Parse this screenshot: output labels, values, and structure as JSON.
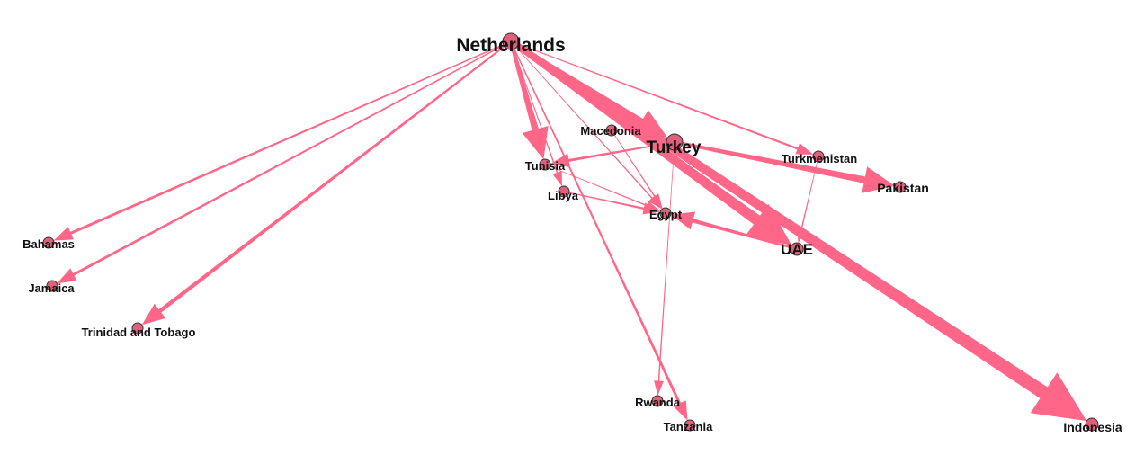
{
  "colors": {
    "edge": "#ff6687",
    "node_fill": "#e0607a",
    "node_stroke": "#333333",
    "label": "#111111"
  },
  "nodes": [
    {
      "id": "netherlands",
      "label": "Netherlands"
    },
    {
      "id": "turkey",
      "label": "Turkey"
    },
    {
      "id": "uae",
      "label": "UAE"
    },
    {
      "id": "macedonia",
      "label": "Macedonia"
    },
    {
      "id": "tunisia",
      "label": "Tunisia"
    },
    {
      "id": "libya",
      "label": "Libya"
    },
    {
      "id": "egypt",
      "label": "Egypt"
    },
    {
      "id": "turkmenistan",
      "label": "Turkmenistan"
    },
    {
      "id": "pakistan",
      "label": "Pakistan"
    },
    {
      "id": "bahamas",
      "label": "Bahamas"
    },
    {
      "id": "jamaica",
      "label": "Jamaica"
    },
    {
      "id": "trinidad",
      "label": "Trinidad and Tobago"
    },
    {
      "id": "rwanda",
      "label": "Rwanda"
    },
    {
      "id": "tanzania",
      "label": "Tanzania"
    },
    {
      "id": "indonesia",
      "label": "Indonesia"
    }
  ],
  "edges": [
    {
      "from": "netherlands",
      "to": "indonesia",
      "weight": 10
    },
    {
      "from": "netherlands",
      "to": "uae",
      "weight": 8
    },
    {
      "from": "netherlands",
      "to": "turkey",
      "weight": 5
    },
    {
      "from": "netherlands",
      "to": "tunisia",
      "weight": 5
    },
    {
      "from": "netherlands",
      "to": "trinidad",
      "weight": 3
    },
    {
      "from": "netherlands",
      "to": "jamaica",
      "weight": 2
    },
    {
      "from": "netherlands",
      "to": "bahamas",
      "weight": 2
    },
    {
      "from": "netherlands",
      "to": "tanzania",
      "weight": 2
    },
    {
      "from": "netherlands",
      "to": "turkmenistan",
      "weight": 1.5
    },
    {
      "from": "netherlands",
      "to": "egypt",
      "weight": 1
    },
    {
      "from": "netherlands",
      "to": "libya",
      "weight": 1
    },
    {
      "from": "turkey",
      "to": "pakistan",
      "weight": 5
    },
    {
      "from": "turkey",
      "to": "tunisia",
      "weight": 2
    },
    {
      "from": "turkey",
      "to": "rwanda",
      "weight": 1
    },
    {
      "from": "uae",
      "to": "egypt",
      "weight": 3
    },
    {
      "from": "macedonia",
      "to": "egypt",
      "weight": 1
    },
    {
      "from": "tunisia",
      "to": "egypt",
      "weight": 1
    },
    {
      "from": "libya",
      "to": "egypt",
      "weight": 1.5
    },
    {
      "from": "turkmenistan",
      "to": "uae",
      "weight": 1
    }
  ]
}
